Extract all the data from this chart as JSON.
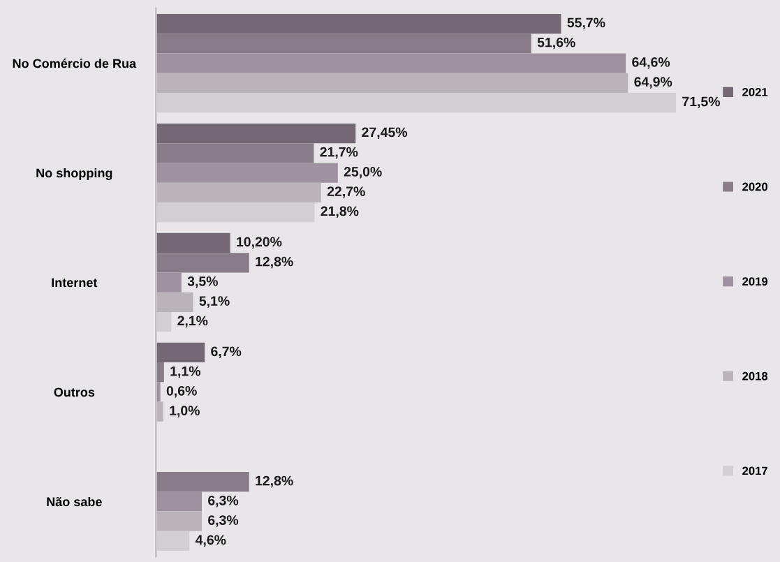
{
  "chart_data": {
    "type": "bar",
    "orientation": "horizontal",
    "categories": [
      "No Comércio de Rua",
      "No shopping",
      "Internet",
      "Outros",
      "Não sabe"
    ],
    "series": [
      {
        "name": "2021",
        "color": "#736873",
        "values": [
          55.7,
          27.45,
          10.2,
          6.7,
          null
        ],
        "value_labels": [
          "55,7%",
          "27,45%",
          "10,20%",
          "6,7%",
          null
        ]
      },
      {
        "name": "2020",
        "color": "#877c87",
        "values": [
          51.6,
          21.7,
          12.8,
          1.1,
          12.8
        ],
        "value_labels": [
          "51,6%",
          "21,7%",
          "12,8%",
          "1,1%",
          "12,8%"
        ]
      },
      {
        "name": "2019",
        "color": "#9f919f",
        "values": [
          64.6,
          25.0,
          3.5,
          0.6,
          6.3
        ],
        "value_labels": [
          "64,6%",
          "25,0%",
          "3,5%",
          "0,6%",
          "6,3%"
        ]
      },
      {
        "name": "2018",
        "color": "#bab3ba",
        "values": [
          64.9,
          22.7,
          5.1,
          1.0,
          6.3
        ],
        "value_labels": [
          "64,9%",
          "22,7%",
          "5,1%",
          "1,0%",
          "6,3%"
        ]
      },
      {
        "name": "2017",
        "color": "#d3ced3",
        "values": [
          71.5,
          21.8,
          2.1,
          null,
          4.6
        ],
        "value_labels": [
          "71,5%",
          "21,8%",
          "2,1%",
          null,
          "4,6%"
        ]
      }
    ],
    "tick_labels": "y",
    "legend": "right"
  }
}
